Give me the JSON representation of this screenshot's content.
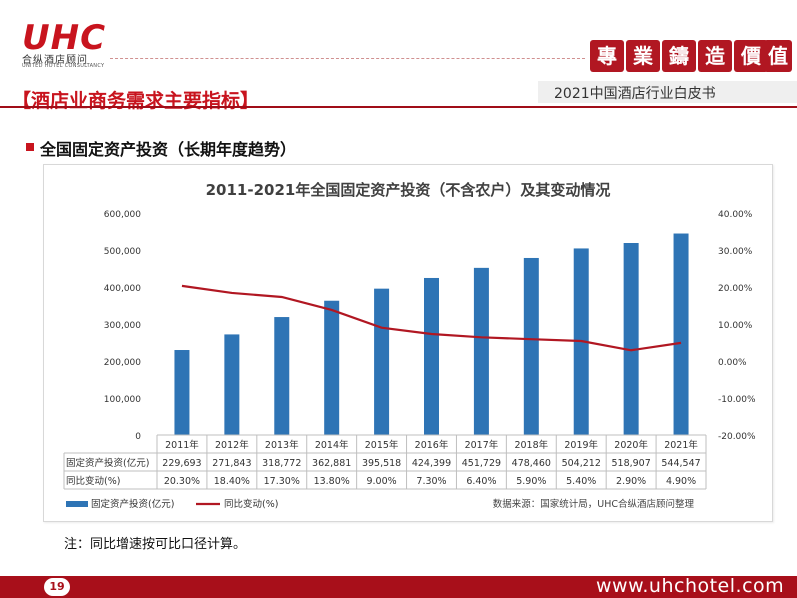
{
  "header": {
    "logo_text": "UHC",
    "logo_cn": "合纵酒店顾问",
    "logo_en": "UNITED HOTEL CONSULTANCY",
    "seals": [
      "專",
      "業",
      "鑄",
      "造",
      "價",
      "值"
    ],
    "report_title": "2021中国酒店行业白皮书",
    "topic": "【酒店业商务需求主要指标】"
  },
  "section": {
    "title": "全国固定资产投资（长期年度趋势）"
  },
  "chart_data": {
    "type": "bar",
    "title": "2011-2021年全国固定资产投资（不含农户）及其变动情况",
    "categories": [
      "2011年",
      "2012年",
      "2013年",
      "2014年",
      "2015年",
      "2016年",
      "2017年",
      "2018年",
      "2019年",
      "2020年",
      "2021年"
    ],
    "series": [
      {
        "name": "固定资产投资(亿元)",
        "type": "bar",
        "axis": "left",
        "color": "#2e74b5",
        "values": [
          229693,
          271843,
          318772,
          362881,
          395518,
          424399,
          451729,
          478460,
          504212,
          518907,
          544547
        ],
        "labels": [
          "229,693",
          "271,843",
          "318,772",
          "362,881",
          "395,518",
          "424,399",
          "451,729",
          "478,460",
          "504,212",
          "518,907",
          "544,547"
        ]
      },
      {
        "name": "同比变动(%)",
        "type": "line",
        "axis": "right",
        "color": "#b11722",
        "values": [
          20.3,
          18.4,
          17.3,
          13.8,
          9.0,
          7.3,
          6.4,
          5.9,
          5.4,
          2.9,
          4.9
        ],
        "labels": [
          "20.30%",
          "18.40%",
          "17.30%",
          "13.80%",
          "9.00%",
          "7.30%",
          "6.40%",
          "5.90%",
          "5.40%",
          "2.90%",
          "4.90%"
        ]
      }
    ],
    "left_axis": {
      "ylim": [
        0,
        600000
      ],
      "ticks": [
        "0",
        "100,000",
        "200,000",
        "300,000",
        "400,000",
        "500,000",
        "600,000"
      ]
    },
    "right_axis": {
      "ylim": [
        -20,
        40
      ],
      "ticks": [
        "-20.00%",
        "-10.00%",
        "0.00%",
        "10.00%",
        "20.00%",
        "30.00%",
        "40.00%"
      ]
    },
    "table_row_labels": [
      "固定资产投资(亿元)",
      "同比变动(%)"
    ],
    "legend": [
      "固定资产投资(亿元)",
      "同比变动(%)"
    ],
    "legend_position": "bottom-left",
    "source": "数据来源：国家统计局，UHC合纵酒店顾问整理"
  },
  "note": "注：同比增速按可比口径计算。",
  "footer": {
    "page_number": "19",
    "url": "www.uhchotel.com"
  }
}
